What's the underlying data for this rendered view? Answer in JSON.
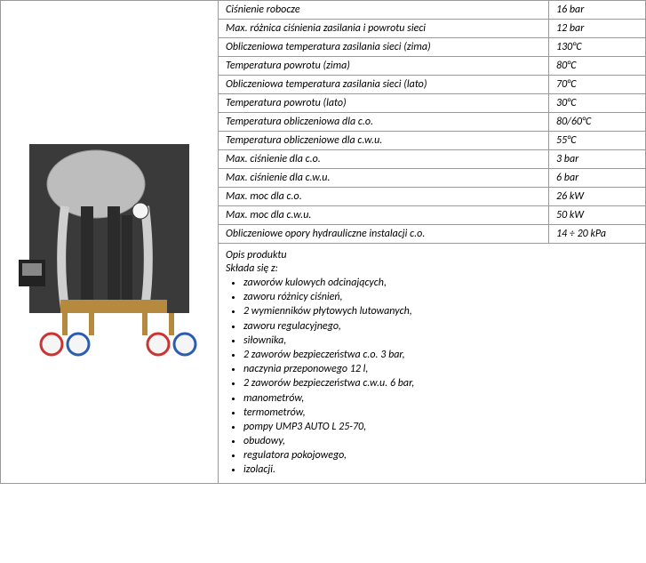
{
  "specs": [
    {
      "label": "Ciśnienie robocze",
      "value": "16 bar"
    },
    {
      "label": "Max. różnica ciśnienia zasilania i  powrotu sieci",
      "value": "12 bar"
    },
    {
      "label": "Obliczeniowa temperatura zasilania sieci (zima)",
      "value": "130°C"
    },
    {
      "label": "Temperatura powrotu (zima)",
      "value": "80°C"
    },
    {
      "label": "Obliczeniowa temperatura zasilania sieci (lato)",
      "value": "70°C"
    },
    {
      "label": "Temperatura powrotu (lato)",
      "value": "30°C"
    },
    {
      "label": "Temperatura obliczeniowa dla c.o.",
      "value": "80/60°C"
    },
    {
      "label": "Temperatura obliczeniowe dla c.w.u.",
      "value": "55°C"
    },
    {
      "label": "Max. ciśnienie dla c.o.",
      "value": "3 bar"
    },
    {
      "label": "Max. ciśnienie dla c.w.u.",
      "value": "6 bar"
    },
    {
      "label": "Max. moc dla c.o.",
      "value": "26 kW"
    },
    {
      "label": "Max. moc dla c.w.u.",
      "value": "50 kW"
    },
    {
      "label": "Obliczeniowe opory hydrauliczne instalacji c.o.",
      "value": "14 ÷ 20 kPa"
    }
  ],
  "description": {
    "title1": "Opis produktu",
    "title2": "Składa się z:",
    "items": [
      "zaworów kulowych odcinających,",
      "zaworu różnicy ciśnień,",
      "2 wymienników płytowych lutowanych,",
      "zaworu regulacyjnego,",
      "siłownika,",
      "2 zaworów bezpieczeństwa c.o. 3 bar,",
      "naczynia przeponowego 12 l,",
      "2 zaworów bezpieczeństwa c.w.u. 6 bar,",
      "manometrów,",
      "termometrów,",
      "pompy UMP3 AUTO L 25-70,",
      "obudowy,",
      "regulatora pokojowego,",
      "izolacji."
    ]
  },
  "image": {
    "alt": "heating substation product photo",
    "colors": {
      "panel": "#3a3a3a",
      "tank": "#bdbdbd",
      "pipe_dark": "#2b2b2b",
      "brass": "#b58a3f",
      "steel": "#cfcfcf",
      "gauge_red": "#c33",
      "gauge_blue": "#2a5db0",
      "gauge_white": "#f5f5f5"
    }
  }
}
